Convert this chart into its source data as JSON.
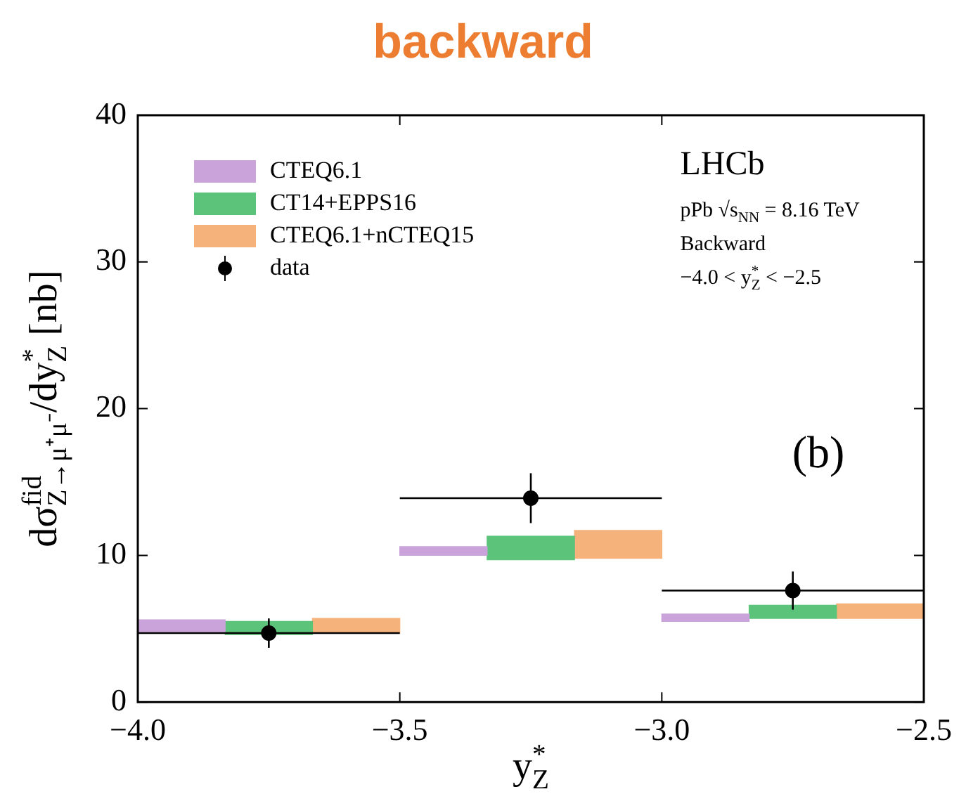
{
  "chart_data": {
    "type": "bar",
    "title": "backward",
    "xlabel": "y$^{*}$$_{Z}$",
    "ylabel": "dσ$^{fid}$$_{Z→μ⁺μ⁻}$/dy$^{*}$$_{Z}$ [nb]",
    "xlim": [
      -4.0,
      -2.5
    ],
    "xticks": [
      {
        "value": -4.0,
        "label": "−4.0"
      },
      {
        "value": -3.5,
        "label": "−3.5"
      },
      {
        "value": -3.0,
        "label": "−3.0"
      },
      {
        "value": -2.5,
        "label": "−2.5"
      }
    ],
    "ylim": [
      0,
      40
    ],
    "yticks": [
      0,
      10,
      20,
      30,
      40
    ],
    "grid": false,
    "legend": "top left",
    "marker": "circle",
    "annotations": [
      "LHCb",
      "pPb √s$_{NN}$ = 8.16 TeV",
      "Backward",
      "−4.0 < y$^{*}$$_{Z}$ < −2.5",
      "(b)"
    ],
    "series": [
      {
        "name": "CTEQ6.1",
        "color": "#c9a3d9",
        "x": [
          -3.75,
          -3.25,
          -2.75
        ],
        "base": [
          4.8,
          10.0,
          5.5
        ],
        "values": [
          0.8,
          0.6,
          0.5
        ]
      },
      {
        "name": "CT14+EPPS16",
        "color": "#5cc47a",
        "x": [
          -3.75,
          -3.25,
          -2.75
        ],
        "base": [
          4.6,
          9.7,
          5.7
        ],
        "values": [
          0.9,
          1.6,
          0.9
        ]
      },
      {
        "name": "CTEQ6.1+nCTEQ15",
        "color": "#f5b27a",
        "x": [
          -3.75,
          -3.25,
          -2.75
        ],
        "base": [
          4.7,
          9.8,
          5.7
        ],
        "values": [
          1.0,
          1.9,
          1.0
        ]
      },
      {
        "name": "data",
        "type": "scatter",
        "color": "#000000",
        "x": [
          -3.75,
          -3.25,
          -2.75
        ],
        "values": [
          4.7,
          13.9,
          7.6
        ],
        "errors": [
          1.0,
          1.7,
          1.3
        ],
        "xerrors": [
          0.25,
          0.25,
          0.25
        ]
      }
    ]
  }
}
